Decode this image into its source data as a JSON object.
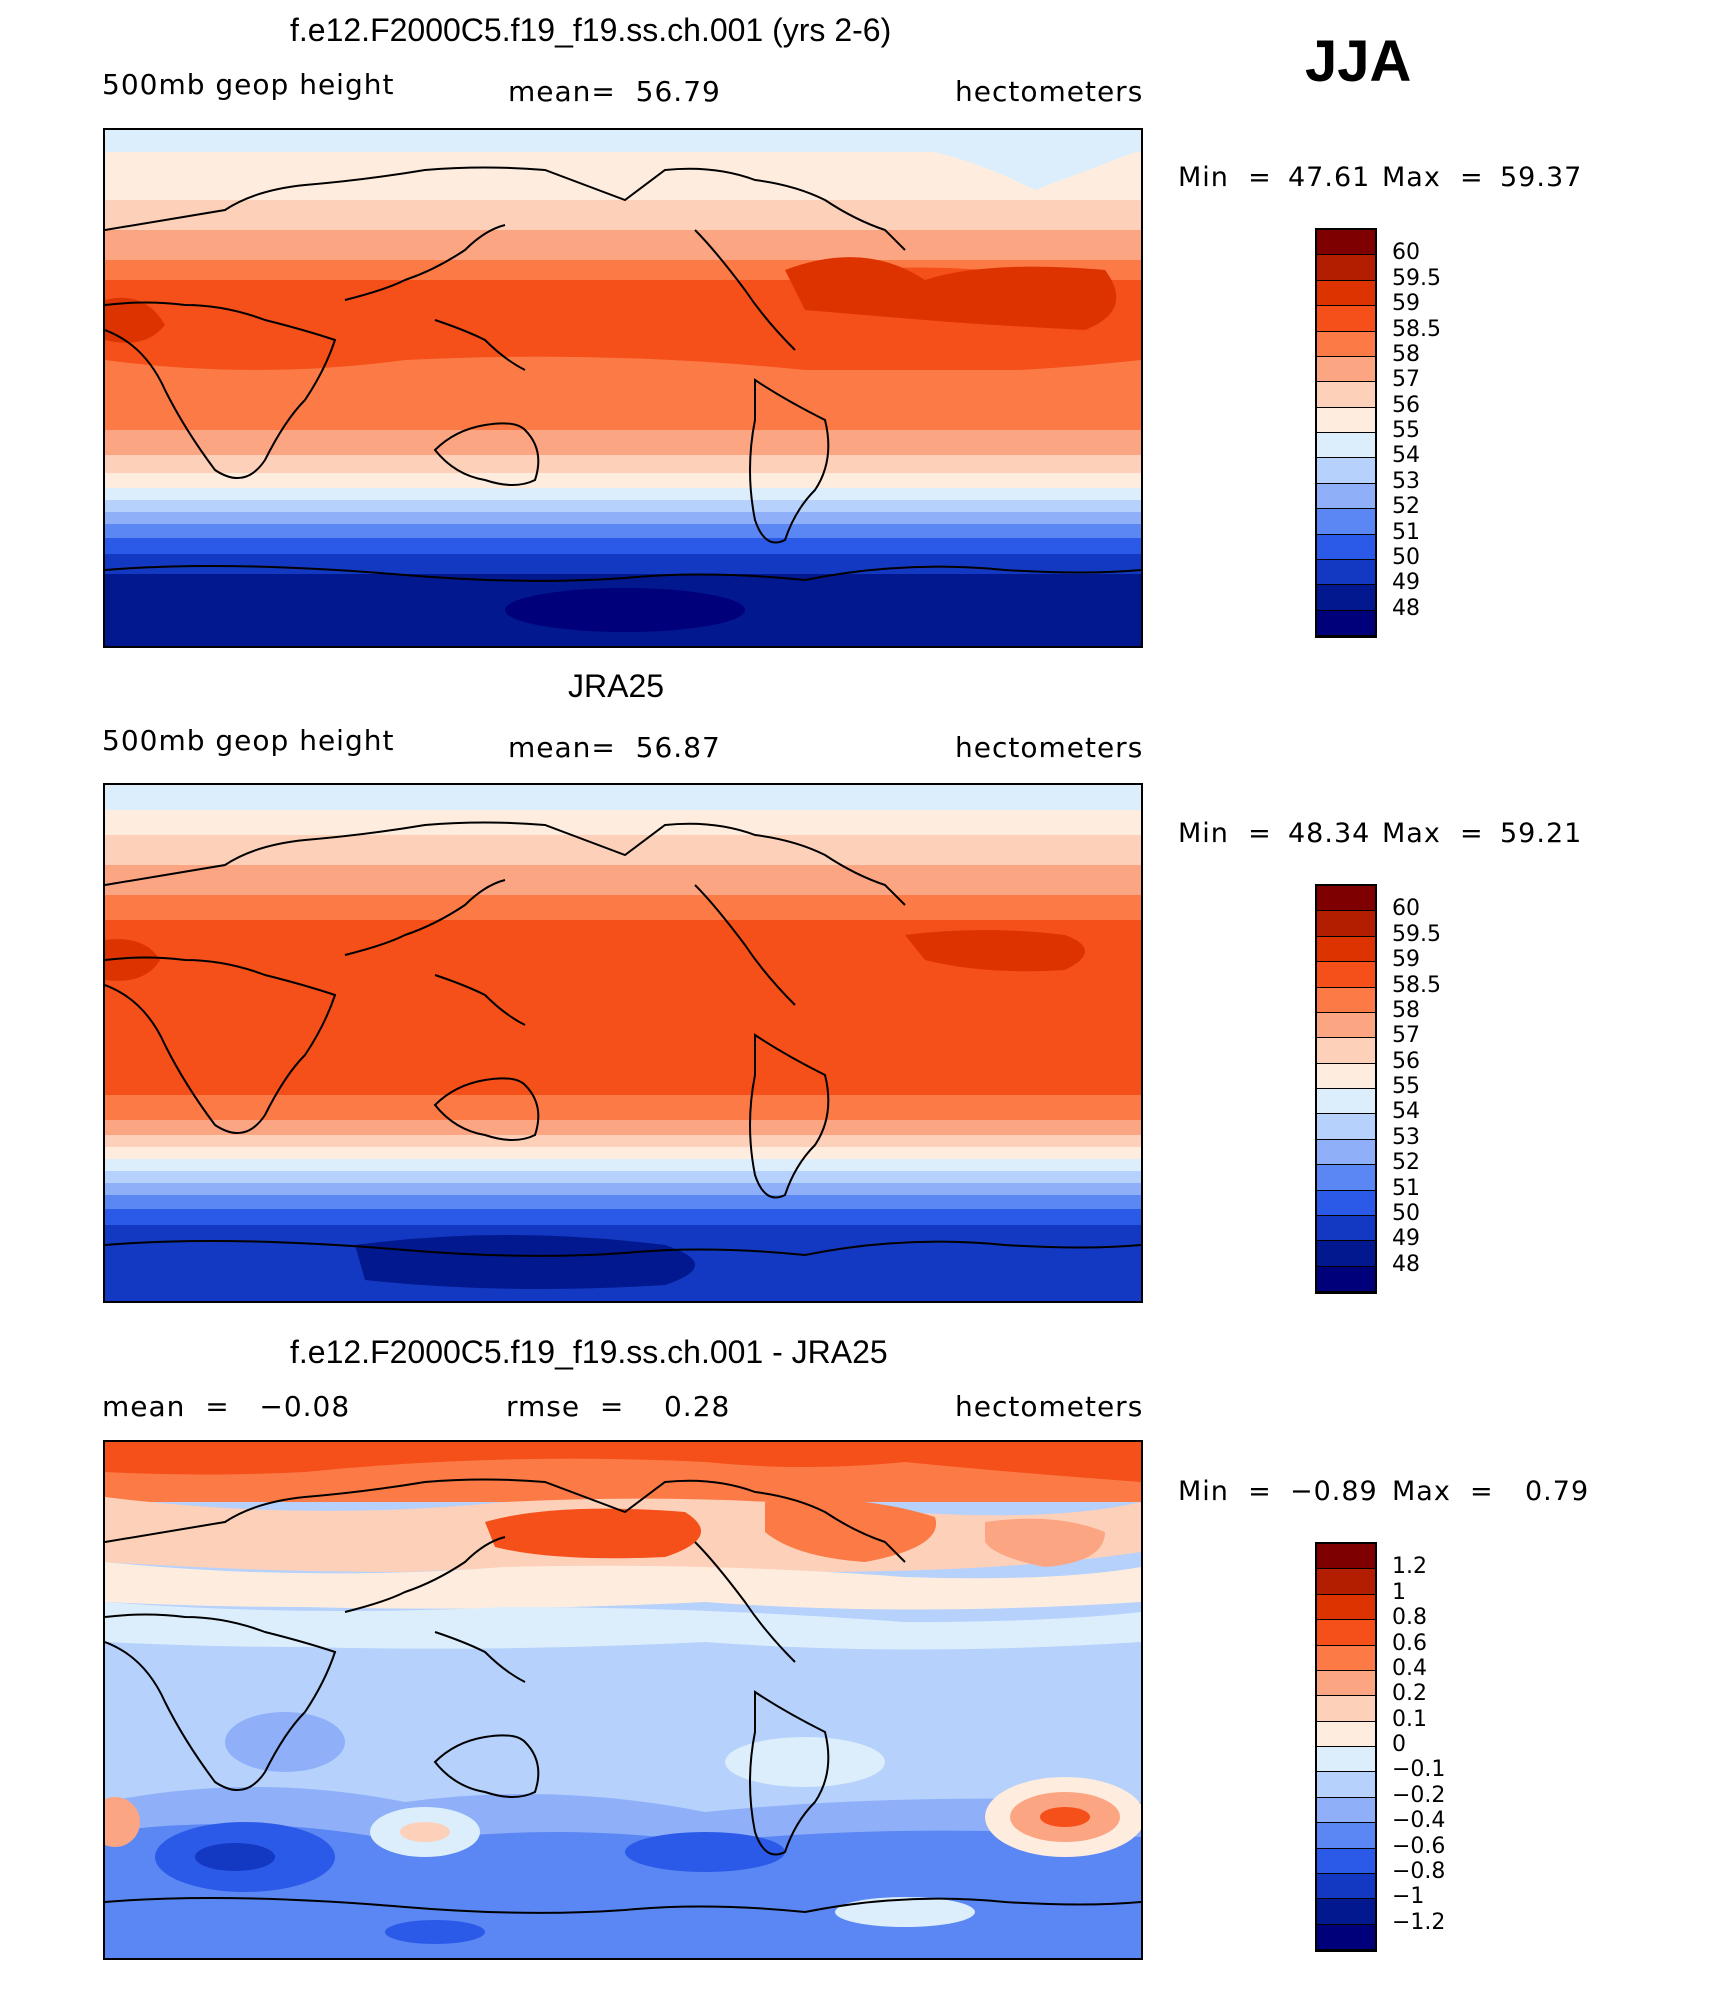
{
  "season": "JJA",
  "panels": [
    {
      "title": "f.e12.F2000C5.f19_f19.ss.ch.001 (yrs 2-6)",
      "variable": "500mb geop height",
      "stat": "mean=  56.79",
      "units": "hectometers",
      "min_label": "Min  =",
      "min_value": "47.61",
      "max_label": "Max  =",
      "max_value": "59.37",
      "colorbar_labels": [
        "60",
        "59.5",
        "59",
        "58.5",
        "58",
        "57",
        "56",
        "55",
        "54",
        "53",
        "52",
        "51",
        "50",
        "49",
        "48"
      ]
    },
    {
      "title": "JRA25",
      "variable": "500mb geop height",
      "stat": "mean=  56.87",
      "units": "hectometers",
      "min_label": "Min  =",
      "min_value": "48.34",
      "max_label": "Max  =",
      "max_value": "59.21",
      "colorbar_labels": [
        "60",
        "59.5",
        "59",
        "58.5",
        "58",
        "57",
        "56",
        "55",
        "54",
        "53",
        "52",
        "51",
        "50",
        "49",
        "48"
      ]
    },
    {
      "title": "f.e12.F2000C5.f19_f19.ss.ch.001 - JRA25",
      "mean_text": "mean  =   −0.08",
      "rmse_text": "rmse  =    0.28",
      "units": "hectometers",
      "min_label": "Min  =",
      "min_value": "−0.89",
      "max_label": "Max  =",
      "max_value": "0.79",
      "colorbar_labels": [
        "1.2",
        "1",
        "0.8",
        "0.6",
        "0.4",
        "0.2",
        "0.1",
        "0",
        "−0.1",
        "−0.2",
        "−0.4",
        "−0.6",
        "−0.8",
        "−1",
        "−1.2"
      ]
    }
  ],
  "colors": {
    "scale": [
      "#7f0000",
      "#b31d00",
      "#dd3300",
      "#f54f1a",
      "#fb7a46",
      "#fca583",
      "#fdd0b9",
      "#feedde",
      "#dceefc",
      "#b5d1fc",
      "#8fb0f9",
      "#5b87f4",
      "#2c5ae8",
      "#1338c2",
      "#02188f",
      "#00007a"
    ]
  }
}
